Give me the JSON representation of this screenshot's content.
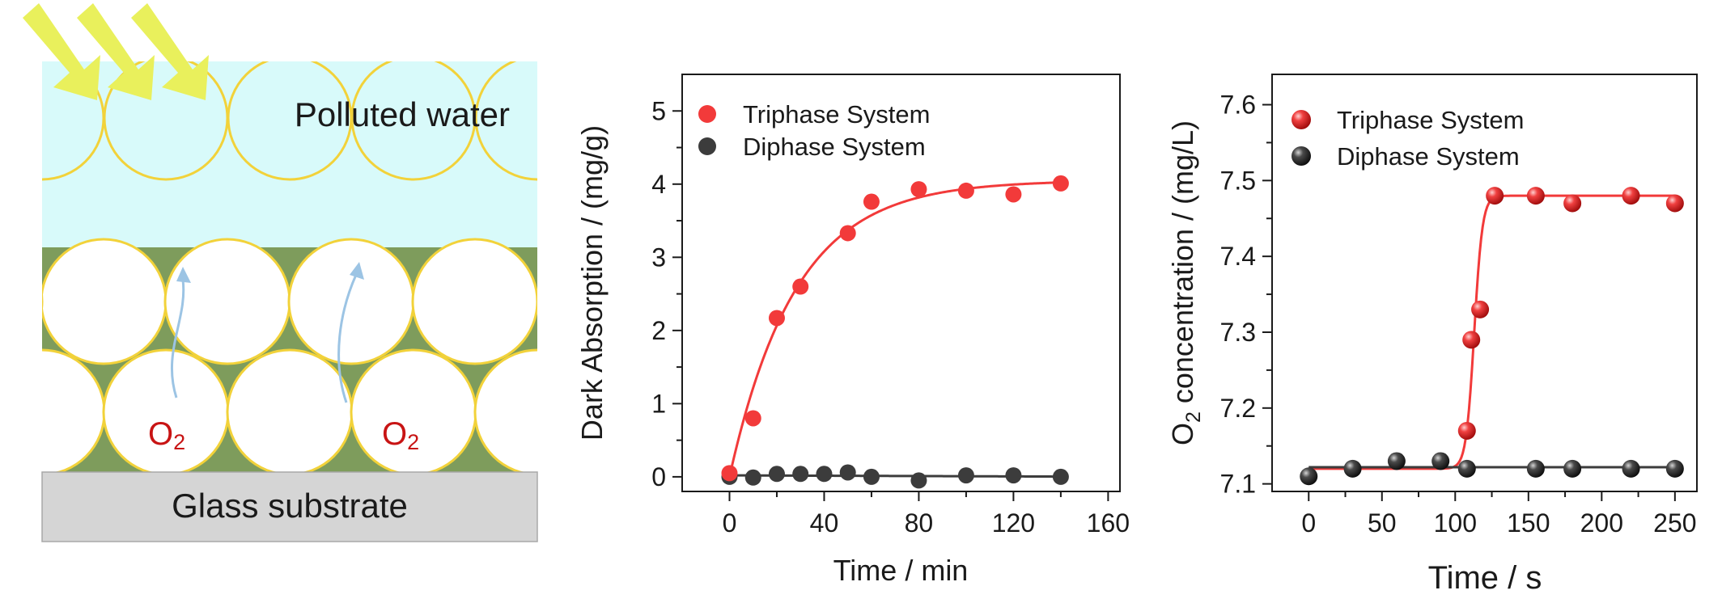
{
  "schematic": {
    "water_label": "Polluted water",
    "substrate_label": "Glass substrate",
    "gas_label_main": "O",
    "gas_label_sub": "2",
    "colors": {
      "water": "#d8fafa",
      "solid": "#7e9c5c",
      "bubble_edge": "#f2d23a",
      "substrate": "#d5d5d5",
      "light_arrow": "#e9f05c",
      "gas_label": "#c81414",
      "gas_arrow": "#9cc4e4"
    }
  },
  "chart_data": [
    {
      "type": "scatter",
      "title": "",
      "xlabel": "Time / min",
      "ylabel": "Dark Absorption / (mg/g)",
      "xlim": [
        -20,
        165
      ],
      "ylim": [
        -0.2,
        5.5
      ],
      "xticks": [
        0,
        40,
        80,
        120,
        160
      ],
      "yticks": [
        0,
        1,
        2,
        3,
        4,
        5
      ],
      "legend": "top-left",
      "grid": false,
      "series": [
        {
          "name": "Triphase System",
          "color": "#f23a3a",
          "x": [
            0,
            10,
            20,
            30,
            50,
            60,
            80,
            100,
            120,
            140
          ],
          "y": [
            0.05,
            0.8,
            2.17,
            2.6,
            3.33,
            3.76,
            3.93,
            3.91,
            3.86,
            4.01
          ],
          "fit": "1 - exp saturation"
        },
        {
          "name": "Diphase System",
          "color": "#3c3c3c",
          "x": [
            0,
            10,
            20,
            30,
            40,
            50,
            60,
            80,
            100,
            120,
            140
          ],
          "y": [
            0.0,
            -0.01,
            0.04,
            0.04,
            0.04,
            0.06,
            0.0,
            -0.05,
            0.02,
            0.02,
            0.0
          ],
          "fit": "flat"
        }
      ]
    },
    {
      "type": "scatter",
      "title": "",
      "xlabel": "Time / s",
      "ylabel_main": "O",
      "ylabel_sub": "2",
      "ylabel_rest": " concentration / (mg/L)",
      "xlim": [
        -25,
        265
      ],
      "ylim": [
        7.09,
        7.64
      ],
      "xticks": [
        0,
        50,
        100,
        150,
        200,
        250
      ],
      "yticks": [
        7.1,
        7.2,
        7.3,
        7.4,
        7.5,
        7.6
      ],
      "legend": "top-left",
      "grid": false,
      "series": [
        {
          "name": "Triphase System",
          "color": "#f23a3a",
          "x": [
            108,
            111,
            117,
            127,
            155,
            180,
            220,
            250
          ],
          "y": [
            7.17,
            7.29,
            7.33,
            7.48,
            7.48,
            7.47,
            7.48,
            7.47
          ],
          "fit": "sigmoid"
        },
        {
          "name": "Diphase System",
          "color": "#3c3c3c",
          "x": [
            0,
            30,
            60,
            90,
            108,
            155,
            180,
            220,
            250
          ],
          "y": [
            7.11,
            7.12,
            7.13,
            7.13,
            7.12,
            7.12,
            7.12,
            7.12,
            7.12
          ],
          "fit": "flat"
        }
      ]
    }
  ]
}
